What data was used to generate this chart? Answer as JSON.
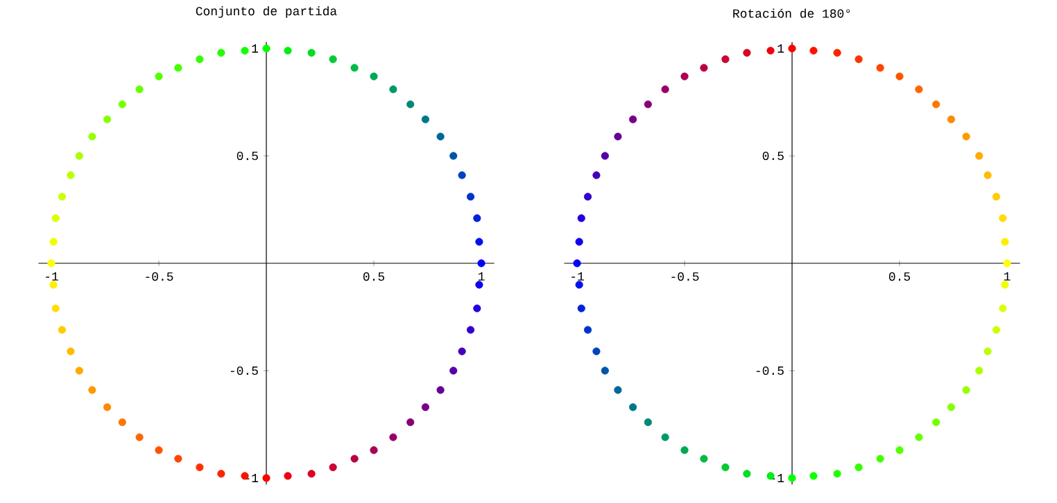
{
  "chart_data": [
    {
      "type": "scatter",
      "title": "Conjunto de partida",
      "marker": "circle",
      "grid": false,
      "x": [
        1,
        0.99,
        0.98,
        0.95,
        0.91,
        0.87,
        0.81,
        0.74,
        0.67,
        0.59,
        0.5,
        0.41,
        0.31,
        0.21,
        0.1,
        0,
        -0.1,
        -0.21,
        -0.31,
        -0.41,
        -0.5,
        -0.59,
        -0.67,
        -0.74,
        -0.81,
        -0.87,
        -0.91,
        -0.95,
        -0.98,
        -0.99,
        -1,
        -0.99,
        -0.98,
        -0.95,
        -0.91,
        -0.87,
        -0.81,
        -0.74,
        -0.67,
        -0.59,
        -0.5,
        -0.41,
        -0.31,
        -0.21,
        -0.1,
        0,
        0.1,
        0.21,
        0.31,
        0.41,
        0.5,
        0.59,
        0.67,
        0.74,
        0.81,
        0.87,
        0.91,
        0.95,
        0.98,
        0.99
      ],
      "values": [
        0,
        0.1,
        0.21,
        0.31,
        0.41,
        0.5,
        0.59,
        0.67,
        0.74,
        0.81,
        0.87,
        0.91,
        0.95,
        0.98,
        0.99,
        1,
        0.99,
        0.98,
        0.95,
        0.91,
        0.87,
        0.81,
        0.74,
        0.67,
        0.59,
        0.5,
        0.41,
        0.31,
        0.21,
        0.1,
        0,
        -0.1,
        -0.21,
        -0.31,
        -0.41,
        -0.5,
        -0.59,
        -0.67,
        -0.74,
        -0.81,
        -0.87,
        -0.91,
        -0.95,
        -0.98,
        -0.99,
        -1,
        -0.99,
        -0.98,
        -0.95,
        -0.91,
        -0.87,
        -0.81,
        -0.74,
        -0.67,
        -0.59,
        -0.5,
        -0.41,
        -0.31,
        -0.21,
        -0.1
      ],
      "colors": [
        "#0000ff",
        "#0011ee",
        "#0022dd",
        "#0033cc",
        "#0044bb",
        "#0055aa",
        "#006699",
        "#007788",
        "#008877",
        "#009966",
        "#00aa55",
        "#00bb44",
        "#00cc33",
        "#00dd22",
        "#00ee11",
        "#00ff00",
        "#11ff00",
        "#22ff00",
        "#33ff00",
        "#44ff00",
        "#55ff00",
        "#66ff00",
        "#77ff00",
        "#88ff00",
        "#99ff00",
        "#aaff00",
        "#bbff00",
        "#ccff00",
        "#ddff00",
        "#eeff00",
        "#ffff00",
        "#ffee00",
        "#ffdd00",
        "#ffcc00",
        "#ffbb00",
        "#ffaa00",
        "#ff9900",
        "#ff8800",
        "#ff7700",
        "#ff6600",
        "#ff5500",
        "#ff4400",
        "#ff3300",
        "#ff2200",
        "#ff1100",
        "#ff0000",
        "#ee0011",
        "#dd0022",
        "#cc0033",
        "#bb0044",
        "#aa0055",
        "#990066",
        "#880077",
        "#770088",
        "#660099",
        "#5500aa",
        "#4400bb",
        "#3300cc",
        "#2200dd",
        "#1100ee"
      ],
      "xlim": [
        -1.06,
        1.06
      ],
      "ylim": [
        -1.03,
        1.03
      ],
      "xticks": [
        -1,
        -0.5,
        0.5,
        1
      ],
      "yticks": [
        -1,
        -0.5,
        0.5,
        1
      ]
    },
    {
      "type": "scatter",
      "title": "Rotación de 180°",
      "marker": "circle",
      "grid": false,
      "x": [
        1,
        0.99,
        0.98,
        0.95,
        0.91,
        0.87,
        0.81,
        0.74,
        0.67,
        0.59,
        0.5,
        0.41,
        0.31,
        0.21,
        0.1,
        0,
        -0.1,
        -0.21,
        -0.31,
        -0.41,
        -0.5,
        -0.59,
        -0.67,
        -0.74,
        -0.81,
        -0.87,
        -0.91,
        -0.95,
        -0.98,
        -0.99,
        -1,
        -0.99,
        -0.98,
        -0.95,
        -0.91,
        -0.87,
        -0.81,
        -0.74,
        -0.67,
        -0.59,
        -0.5,
        -0.41,
        -0.31,
        -0.21,
        -0.1,
        0,
        0.1,
        0.21,
        0.31,
        0.41,
        0.5,
        0.59,
        0.67,
        0.74,
        0.81,
        0.87,
        0.91,
        0.95,
        0.98,
        0.99
      ],
      "values": [
        0,
        0.1,
        0.21,
        0.31,
        0.41,
        0.5,
        0.59,
        0.67,
        0.74,
        0.81,
        0.87,
        0.91,
        0.95,
        0.98,
        0.99,
        1,
        0.99,
        0.98,
        0.95,
        0.91,
        0.87,
        0.81,
        0.74,
        0.67,
        0.59,
        0.5,
        0.41,
        0.31,
        0.21,
        0.1,
        0,
        -0.1,
        -0.21,
        -0.31,
        -0.41,
        -0.5,
        -0.59,
        -0.67,
        -0.74,
        -0.81,
        -0.87,
        -0.91,
        -0.95,
        -0.98,
        -0.99,
        -1,
        -0.99,
        -0.98,
        -0.95,
        -0.91,
        -0.87,
        -0.81,
        -0.74,
        -0.67,
        -0.59,
        -0.5,
        -0.41,
        -0.31,
        -0.21,
        -0.1
      ],
      "colors": [
        "#ffff00",
        "#ffee00",
        "#ffdd00",
        "#ffcc00",
        "#ffbb00",
        "#ffaa00",
        "#ff9900",
        "#ff8800",
        "#ff7700",
        "#ff6600",
        "#ff5500",
        "#ff4400",
        "#ff3300",
        "#ff2200",
        "#ff1100",
        "#ff0000",
        "#ee0011",
        "#dd0022",
        "#cc0033",
        "#bb0044",
        "#aa0055",
        "#990066",
        "#880077",
        "#770088",
        "#660099",
        "#5500aa",
        "#4400bb",
        "#3300cc",
        "#2200dd",
        "#1100ee",
        "#0000ff",
        "#0011ee",
        "#0022dd",
        "#0033cc",
        "#0044bb",
        "#0055aa",
        "#006699",
        "#007788",
        "#008877",
        "#009966",
        "#00aa55",
        "#00bb44",
        "#00cc33",
        "#00dd22",
        "#00ee11",
        "#00ff00",
        "#11ff00",
        "#22ff00",
        "#33ff00",
        "#44ff00",
        "#55ff00",
        "#66ff00",
        "#77ff00",
        "#88ff00",
        "#99ff00",
        "#aaff00",
        "#bbff00",
        "#ccff00",
        "#ddff00",
        "#eeff00"
      ],
      "xlim": [
        -1.06,
        1.06
      ],
      "ylim": [
        -1.03,
        1.03
      ],
      "xticks": [
        -1,
        -0.5,
        0.5,
        1
      ],
      "yticks": [
        -1,
        -0.5,
        0.5,
        1
      ]
    }
  ]
}
